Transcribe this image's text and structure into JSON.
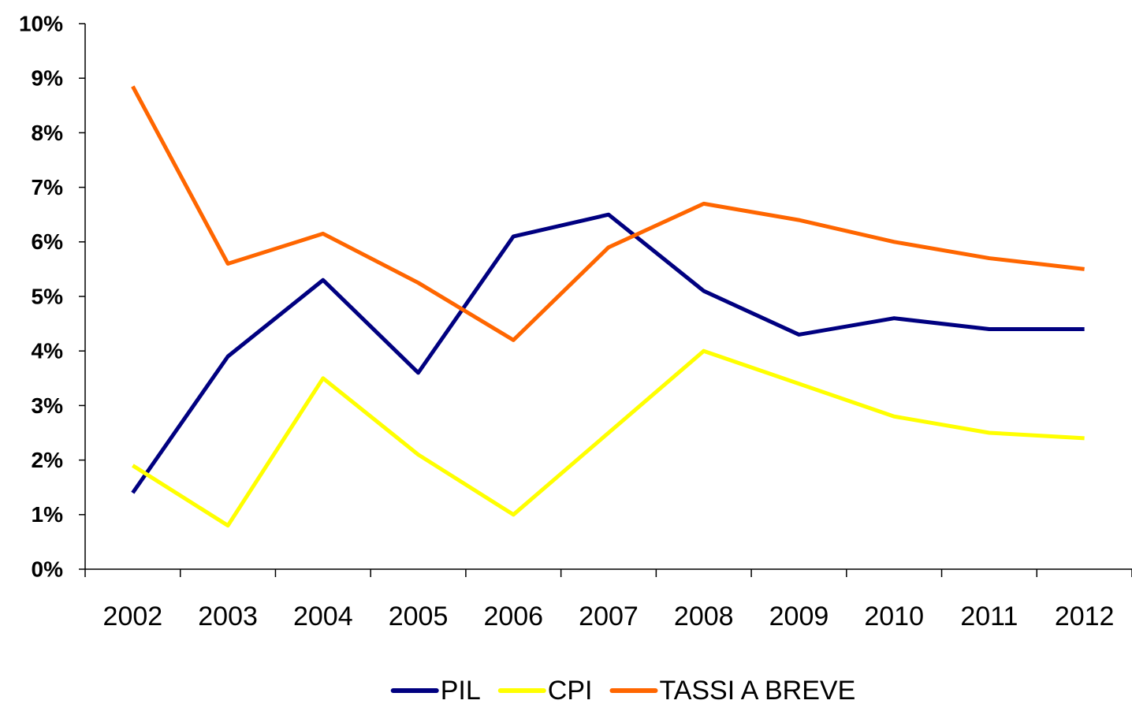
{
  "chart_data": {
    "type": "line",
    "categories": [
      "2002",
      "2003",
      "2004",
      "2005",
      "2006",
      "2007",
      "2008",
      "2009",
      "2010",
      "2011",
      "2012"
    ],
    "series": [
      {
        "name": "PIL",
        "color": "#000080",
        "values": [
          1.4,
          3.9,
          5.3,
          3.6,
          6.1,
          6.5,
          5.1,
          4.3,
          4.6,
          4.4,
          4.4
        ]
      },
      {
        "name": "CPI",
        "color": "#ffff00",
        "values": [
          1.9,
          0.8,
          3.5,
          2.1,
          1.0,
          2.5,
          4.0,
          3.4,
          2.8,
          2.5,
          2.4
        ]
      },
      {
        "name": "TASSI A BREVE",
        "color": "#ff6600",
        "values": [
          8.85,
          5.6,
          6.15,
          5.25,
          4.2,
          5.9,
          6.7,
          6.4,
          6.0,
          5.7,
          5.5
        ]
      }
    ],
    "ylim": [
      0,
      10
    ],
    "yticks": [
      {
        "value": 0,
        "label": "0%"
      },
      {
        "value": 1,
        "label": "1%"
      },
      {
        "value": 2,
        "label": "2%"
      },
      {
        "value": 3,
        "label": "3%"
      },
      {
        "value": 4,
        "label": "4%"
      },
      {
        "value": 5,
        "label": "5%"
      },
      {
        "value": 6,
        "label": "6%"
      },
      {
        "value": 7,
        "label": "7%"
      },
      {
        "value": 8,
        "label": "8%"
      },
      {
        "value": 9,
        "label": "9%"
      },
      {
        "value": 10,
        "label": "10%"
      }
    ],
    "grid": false,
    "legend": "bottom"
  }
}
